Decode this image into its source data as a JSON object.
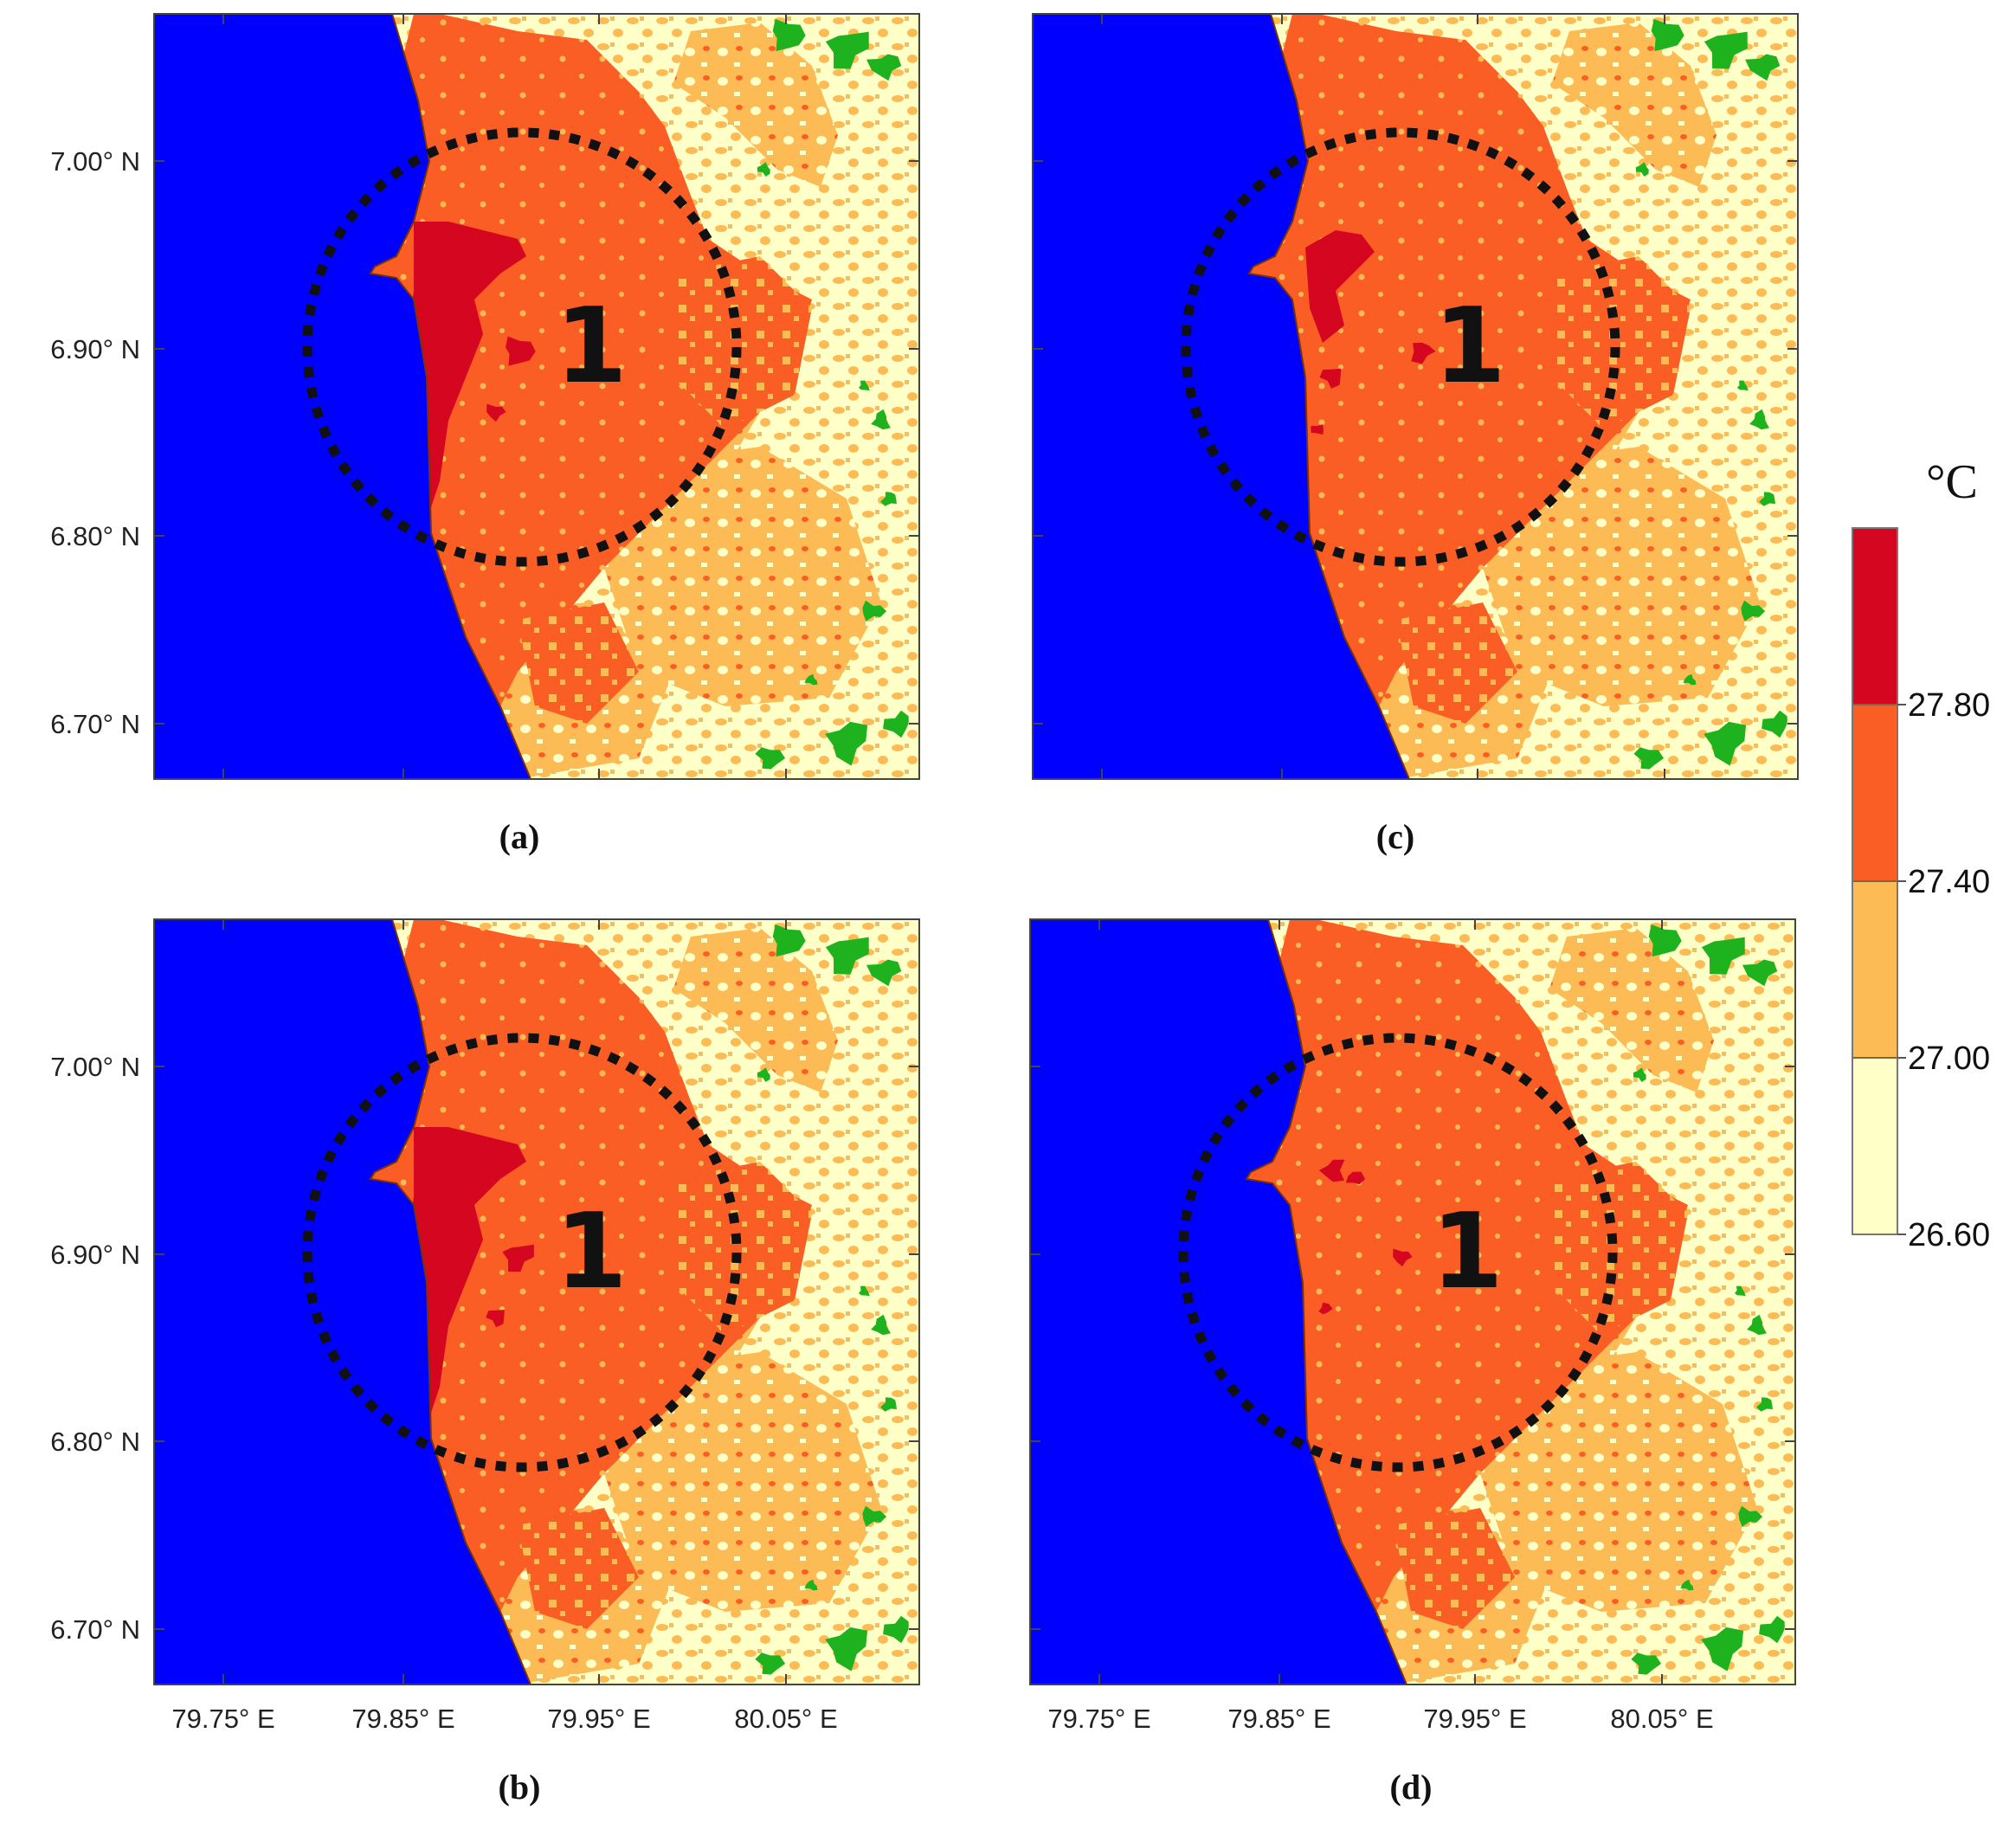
{
  "figure": {
    "lat_labels": [
      "7.00° N",
      "6.90° N",
      "6.80° N",
      "6.70° N"
    ],
    "lon_labels": [
      "79.75° E",
      "79.85° E",
      "79.95° E",
      "80.05° E"
    ],
    "zone_label": "1",
    "panels": [
      {
        "caption": "(a)",
        "hot_extent": "large"
      },
      {
        "caption": "(b)",
        "hot_extent": "large"
      },
      {
        "caption": "(c)",
        "hot_extent": "medium"
      },
      {
        "caption": "(d)",
        "hot_extent": "small"
      }
    ]
  },
  "legend": {
    "unit": "°C",
    "bins": [
      {
        "label": "27.80",
        "color": "#d5061f"
      },
      {
        "label": "27.40",
        "color": "#fb5e25"
      },
      {
        "label": "27.00",
        "color": "#fdbb55"
      },
      {
        "label": "26.60",
        "color": "#ffffc8"
      }
    ]
  },
  "colors": {
    "sea": "#0000ff",
    "vegetation": "#1fb21f",
    "coastline": "#7a3300"
  }
}
